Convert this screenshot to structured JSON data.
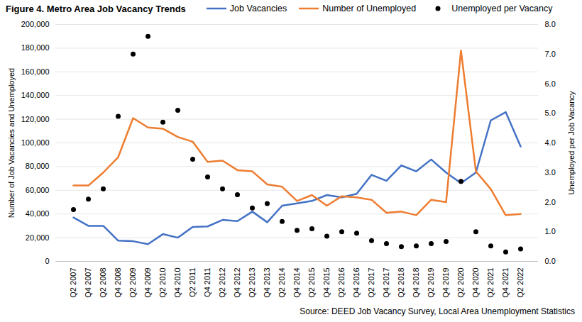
{
  "chart_data": {
    "type": "line",
    "title": "Figure 4. Metro Area Job Vacancy Trends",
    "caption": "Source: DEED Job Vacancy Survey, Local Area Unemployment Statistics",
    "y_label": "Number of Job Vacancies and Unemployed",
    "y2_label": "Unemployed per Job Vacancy",
    "legend": "top",
    "grid": true,
    "categories": [
      "Q2 2007",
      "Q4 2007",
      "Q2 2008",
      "Q4 2008",
      "Q2 2009",
      "Q4 2009",
      "Q2 2010",
      "Q4 2010",
      "Q2 2011",
      "Q4 2011",
      "Q2 2012",
      "Q4 2012",
      "Q2 2013",
      "Q4 2013",
      "Q2 2014",
      "Q4 2014",
      "Q2 2015",
      "Q4 2015",
      "Q2 2016",
      "Q4 2016",
      "Q2 2017",
      "Q4 2017",
      "Q2 2018",
      "Q4 2018",
      "Q2 2019",
      "Q4 2019",
      "Q2 2020",
      "Q4 2020",
      "Q2 2021",
      "Q4 2021",
      "Q2 2022"
    ],
    "ylim": [
      0,
      200000
    ],
    "yticks": [
      0,
      {
        "value": 20000,
        "label": "20,000"
      },
      {
        "value": 40000,
        "label": "40,000"
      },
      {
        "value": 60000,
        "label": "60,000"
      },
      {
        "value": 80000,
        "label": "80,000"
      },
      {
        "value": 100000,
        "label": "100,000"
      },
      {
        "value": 120000,
        "label": "120,000"
      },
      {
        "value": 140000,
        "label": "140,000"
      },
      {
        "value": 160000,
        "label": "160,000"
      },
      {
        "value": 180000,
        "label": "180,000"
      },
      {
        "value": 200000,
        "label": "200,000"
      }
    ],
    "y2lim": [
      0,
      8
    ],
    "y2ticks": [
      {
        "value": 0,
        "label": "0.0"
      },
      {
        "value": 1,
        "label": "1.0"
      },
      {
        "value": 2,
        "label": "2.0"
      },
      {
        "value": 3,
        "label": "3.0"
      },
      {
        "value": 4,
        "label": "4.0"
      },
      {
        "value": 5,
        "label": "5.0"
      },
      {
        "value": 6,
        "label": "6.0"
      },
      {
        "value": 7,
        "label": "7.0"
      },
      {
        "value": 8,
        "label": "8.0"
      }
    ],
    "series": [
      {
        "name": "Job Vacancies",
        "type": "line",
        "color": "#4472c4",
        "line_style": "solid",
        "values": [
          37000,
          30000,
          30000,
          17500,
          17000,
          14500,
          23000,
          20000,
          29000,
          29500,
          35000,
          34000,
          42000,
          33000,
          47000,
          49000,
          51000,
          56000,
          54000,
          57000,
          73000,
          68000,
          81000,
          76000,
          86000,
          75000,
          66000,
          75000,
          119000,
          126000,
          97000
        ]
      },
      {
        "name": "Number of Unemployed",
        "type": "line",
        "color": "#ed7d31",
        "line_style": "solid",
        "values": [
          64000,
          64000,
          75000,
          88000,
          121000,
          113000,
          112000,
          105000,
          101000,
          84000,
          85000,
          77000,
          76000,
          65000,
          63000,
          51000,
          56000,
          47000,
          55000,
          54000,
          52000,
          41000,
          42000,
          39000,
          52000,
          50000,
          178000,
          76000,
          61000,
          39000,
          40000
        ]
      },
      {
        "name": "Unemployed per Vacancy",
        "type": "scatter",
        "axis": "y2",
        "marker": "circle",
        "color": "#000000",
        "values": [
          1.75,
          2.1,
          2.45,
          4.9,
          7.0,
          7.6,
          4.7,
          5.1,
          3.45,
          2.85,
          2.45,
          2.25,
          1.8,
          1.95,
          1.35,
          1.05,
          1.1,
          0.85,
          1.0,
          0.95,
          0.7,
          0.6,
          0.5,
          0.52,
          0.6,
          0.67,
          2.7,
          1.0,
          0.52,
          0.32,
          0.42
        ]
      }
    ]
  }
}
